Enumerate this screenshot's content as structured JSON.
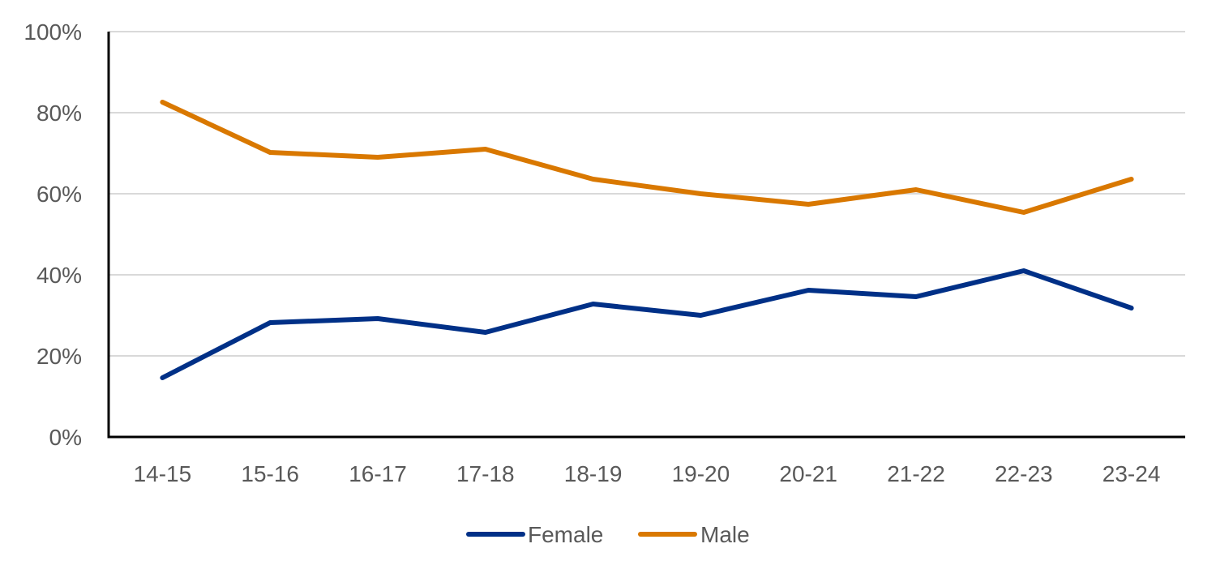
{
  "chart_data": {
    "type": "line",
    "title": "",
    "xlabel": "",
    "ylabel": "",
    "categories": [
      "14-15",
      "15-16",
      "16-17",
      "17-18",
      "18-19",
      "19-20",
      "20-21",
      "21-22",
      "22-23",
      "23-24"
    ],
    "ylim": [
      0,
      100
    ],
    "yticks": [
      0,
      20,
      40,
      60,
      80,
      100
    ],
    "ytick_labels": [
      "0%",
      "20%",
      "40%",
      "60%",
      "80%",
      "100%"
    ],
    "grid": true,
    "legend_position": "bottom-center",
    "series": [
      {
        "name": "Female",
        "color": "#003087",
        "values": [
          14.6,
          28.2,
          29.2,
          25.8,
          32.8,
          30.0,
          36.2,
          34.6,
          41.0,
          31.8
        ]
      },
      {
        "name": "Male",
        "color": "#D97800",
        "values": [
          82.6,
          70.2,
          69.0,
          71.0,
          63.6,
          60.0,
          57.4,
          61.0,
          55.4,
          63.6
        ]
      }
    ]
  }
}
